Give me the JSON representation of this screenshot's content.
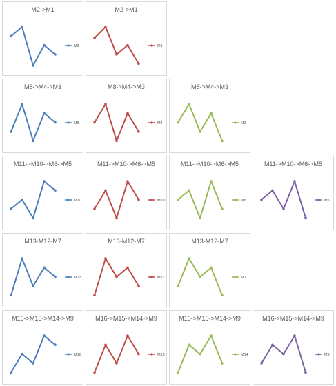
{
  "colors": {
    "blue": "#4a7ebb",
    "red": "#be4b48",
    "green": "#98b954",
    "purple": "#7d60a0"
  },
  "rows": [
    {
      "panels": [
        {
          "title": "M2->M1",
          "series": "M2",
          "color": "blue",
          "values": [
            4.0,
            5.0,
            0.8,
            3.0,
            2.0
          ]
        },
        {
          "title": "M2->M1",
          "series": "M1",
          "color": "red",
          "values": [
            3.8,
            5.0,
            2.0,
            3.0,
            1.0
          ]
        }
      ]
    },
    {
      "panels": [
        {
          "title": "M8->M4->M3",
          "series": "M8",
          "color": "blue",
          "values": [
            2.0,
            5.0,
            1.0,
            4.0,
            3.0
          ]
        },
        {
          "title": "M8->M4->M3",
          "series": "M4",
          "color": "red",
          "values": [
            3.0,
            5.0,
            1.0,
            4.0,
            2.0
          ]
        },
        {
          "title": "M8->M4->M3",
          "series": "M3",
          "color": "green",
          "values": [
            3.0,
            5.0,
            2.0,
            4.0,
            1.0
          ]
        }
      ]
    },
    {
      "panels": [
        {
          "title": "M11->M10->M6->M5",
          "series": "M11",
          "color": "blue",
          "values": [
            2.0,
            3.0,
            1.0,
            5.0,
            4.0
          ]
        },
        {
          "title": "M11->M10->M6->M5",
          "series": "M10",
          "color": "red",
          "values": [
            2.0,
            4.0,
            1.0,
            5.0,
            3.0
          ]
        },
        {
          "title": "M11->M10->M6->M5",
          "series": "M6",
          "color": "green",
          "values": [
            3.0,
            4.0,
            1.0,
            5.0,
            2.0
          ]
        },
        {
          "title": "M11->M10->M6->M5",
          "series": "M5",
          "color": "purple",
          "values": [
            3.0,
            4.0,
            2.0,
            5.0,
            1.0
          ]
        }
      ]
    },
    {
      "panels": [
        {
          "title": "M13-M12-M7",
          "series": "M13",
          "color": "blue",
          "values": [
            1.0,
            5.0,
            2.0,
            4.0,
            3.0
          ]
        },
        {
          "title": "M13-M12-M7",
          "series": "M12",
          "color": "red",
          "values": [
            1.0,
            5.0,
            3.0,
            4.0,
            2.0
          ]
        },
        {
          "title": "M13-M12-M7",
          "series": "M7",
          "color": "green",
          "values": [
            2.0,
            5.0,
            3.0,
            4.0,
            1.0
          ]
        }
      ]
    },
    {
      "panels": [
        {
          "title": "M16->M15->M14->M9",
          "series": "M16",
          "color": "blue",
          "values": [
            1.0,
            3.0,
            2.0,
            5.0,
            4.0
          ]
        },
        {
          "title": "M16->M15->M14->M9",
          "series": "M15",
          "color": "red",
          "values": [
            1.0,
            4.0,
            2.0,
            5.0,
            3.0
          ]
        },
        {
          "title": "M16->M15->M14->M9",
          "series": "M14",
          "color": "green",
          "values": [
            1.0,
            4.0,
            3.0,
            5.0,
            2.0
          ]
        },
        {
          "title": "M16->M15->M14->M9",
          "series": "M9",
          "color": "purple",
          "values": [
            2.0,
            4.0,
            3.0,
            5.0,
            1.0
          ]
        }
      ]
    }
  ],
  "chart_data": {
    "type": "line",
    "title": "",
    "xlabel": "",
    "ylabel": "",
    "grid": false,
    "legend": "right",
    "note": "small-multiples line charts without visible axes; values are relative shape estimates on a 1-5 scale",
    "series": [
      {
        "name": "M2",
        "values": [
          4.0,
          5.0,
          0.8,
          3.0,
          2.0
        ]
      },
      {
        "name": "M1",
        "values": [
          3.8,
          5.0,
          2.0,
          3.0,
          1.0
        ]
      },
      {
        "name": "M8",
        "values": [
          2.0,
          5.0,
          1.0,
          4.0,
          3.0
        ]
      },
      {
        "name": "M4",
        "values": [
          3.0,
          5.0,
          1.0,
          4.0,
          2.0
        ]
      },
      {
        "name": "M3",
        "values": [
          3.0,
          5.0,
          2.0,
          4.0,
          1.0
        ]
      },
      {
        "name": "M11",
        "values": [
          2.0,
          3.0,
          1.0,
          5.0,
          4.0
        ]
      },
      {
        "name": "M10",
        "values": [
          2.0,
          4.0,
          1.0,
          5.0,
          3.0
        ]
      },
      {
        "name": "M6",
        "values": [
          3.0,
          4.0,
          1.0,
          5.0,
          2.0
        ]
      },
      {
        "name": "M5",
        "values": [
          3.0,
          4.0,
          2.0,
          5.0,
          1.0
        ]
      },
      {
        "name": "M13",
        "values": [
          1.0,
          5.0,
          2.0,
          4.0,
          3.0
        ]
      },
      {
        "name": "M12",
        "values": [
          1.0,
          5.0,
          3.0,
          4.0,
          2.0
        ]
      },
      {
        "name": "M7",
        "values": [
          2.0,
          5.0,
          3.0,
          4.0,
          1.0
        ]
      },
      {
        "name": "M16",
        "values": [
          1.0,
          3.0,
          2.0,
          5.0,
          4.0
        ]
      },
      {
        "name": "M15",
        "values": [
          1.0,
          4.0,
          2.0,
          5.0,
          3.0
        ]
      },
      {
        "name": "M14",
        "values": [
          1.0,
          4.0,
          3.0,
          5.0,
          2.0
        ]
      },
      {
        "name": "M9",
        "values": [
          2.0,
          4.0,
          3.0,
          5.0,
          1.0
        ]
      }
    ]
  }
}
